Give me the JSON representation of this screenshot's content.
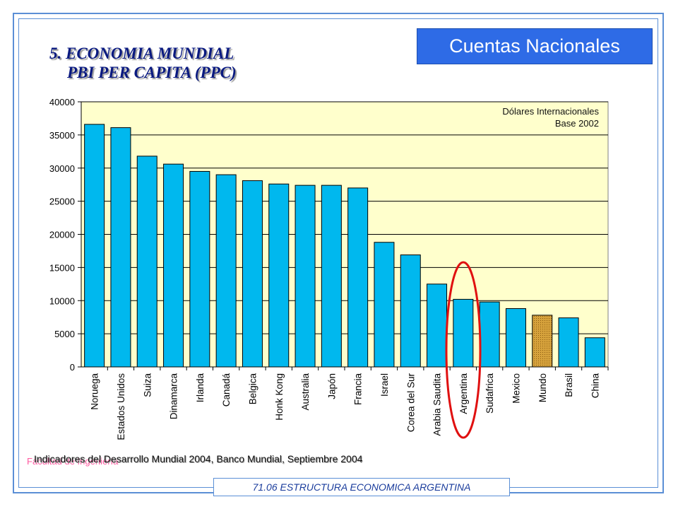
{
  "header": {
    "section_title": "Cuentas Nacionales"
  },
  "slide": {
    "title_line1": "5. ECONOMIA MUNDIAL",
    "title_line2": "PBI PER CAPITA (PPC)",
    "source": "Indicadores del Desarrollo Mundial 2004, Banco Mundial, Septiembre 2004",
    "faculty": "Facultad de Ingeniería",
    "footer": "71.06 ESTRUCTURA ECONOMICA ARGENTINA"
  },
  "chart_data": {
    "type": "bar",
    "annotation_line1": "Dólares Internacionales",
    "annotation_line2": "Base 2002",
    "categories": [
      "Noruega",
      "Estados Unidos",
      "Suiza",
      "Dinamarca",
      "Irlanda",
      "Canadá",
      "Belgica",
      "Honk Kong",
      "Australia",
      "Japón",
      "Francia",
      "Israel",
      "Corea del Sur",
      "Arabia Saudita",
      "Argentina",
      "Sudafrica",
      "Mexico",
      "Mundo",
      "Brasil",
      "China"
    ],
    "values": [
      36600,
      36100,
      31800,
      30600,
      29500,
      29000,
      28100,
      27600,
      27400,
      27400,
      27000,
      18800,
      16900,
      12500,
      10200,
      9800,
      8800,
      7800,
      7400,
      4400
    ],
    "ylim": [
      0,
      40000
    ],
    "yticks": [
      0,
      5000,
      10000,
      15000,
      20000,
      25000,
      30000,
      35000,
      40000
    ],
    "grid": true,
    "highlighted_category": "Mundo",
    "circled_category": "Argentina",
    "colors": {
      "bar": "#00b8ee",
      "highlight": "#d6a23c",
      "plot_background": "#ffffcc",
      "circle": "#e01010"
    }
  }
}
